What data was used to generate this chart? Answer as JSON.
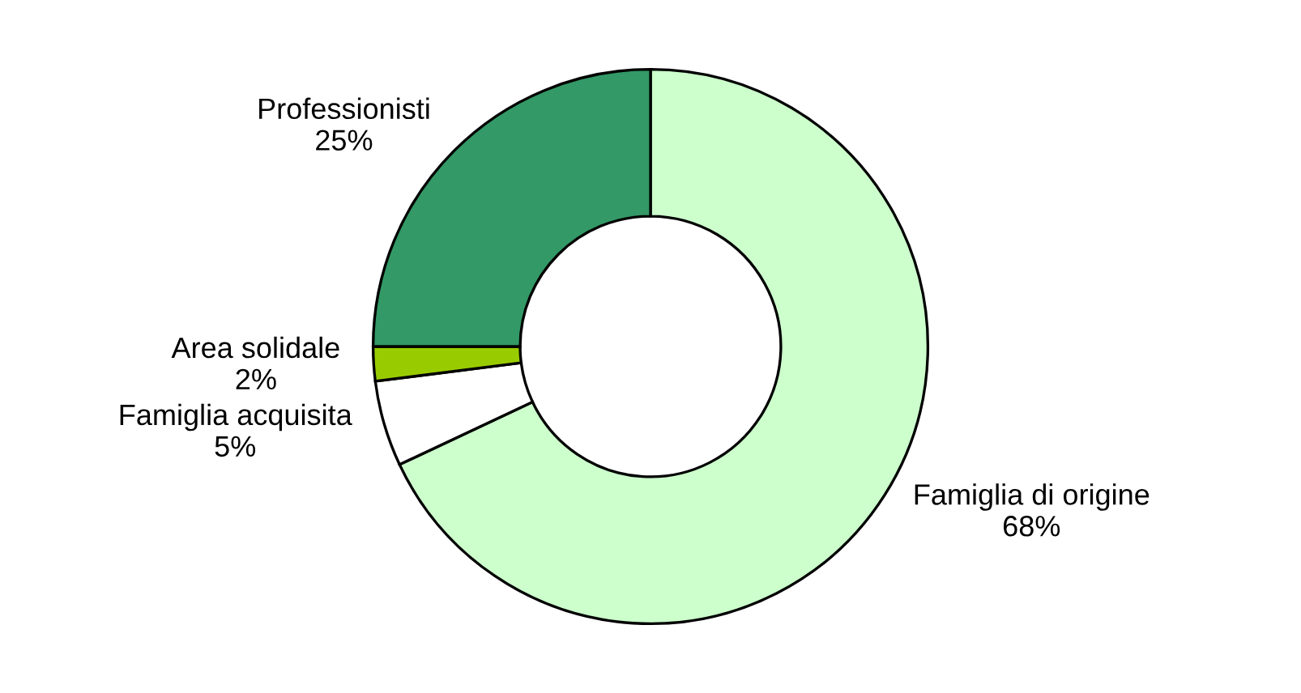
{
  "chart_data": {
    "type": "donut",
    "categories": [
      "Famiglia di origine",
      "Famiglia acquisita",
      "Area solidale",
      "Professionisti"
    ],
    "values": [
      68,
      5,
      2,
      25
    ],
    "value_labels": [
      "68%",
      "5%",
      "2%",
      "25%"
    ],
    "colors": [
      "#ccffcc",
      "#ffffff",
      "#99cc00",
      "#339966"
    ],
    "legend": false
  }
}
